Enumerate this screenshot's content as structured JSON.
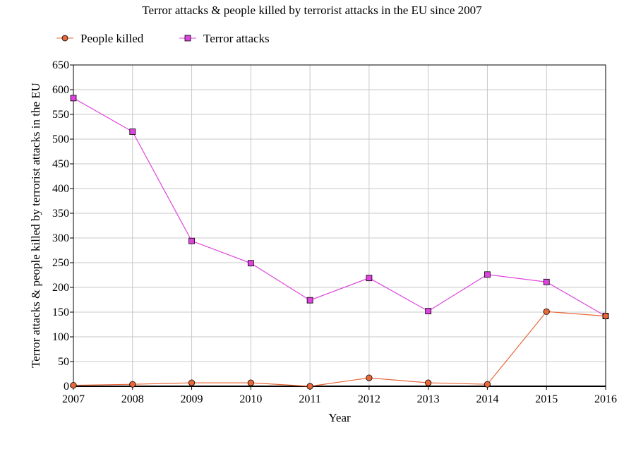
{
  "chart_data": {
    "type": "line",
    "title": "Terror attacks & people killed by terrorist attacks in the EU since 2007",
    "xlabel": "Year",
    "ylabel": "Terror attacks & people killed by terrorist attacks in the EU",
    "categories": [
      "2007",
      "2008",
      "2009",
      "2010",
      "2011",
      "2012",
      "2013",
      "2014",
      "2015",
      "2016"
    ],
    "yticks": [
      "0",
      "50",
      "100",
      "150",
      "200",
      "250",
      "300",
      "350",
      "400",
      "450",
      "500",
      "550",
      "600",
      "650"
    ],
    "ylim": [
      0,
      650
    ],
    "grid": true,
    "legend_position": "top-left",
    "series": [
      {
        "name": "People killed",
        "values": [
          2,
          4,
          7,
          7,
          0,
          17,
          7,
          4,
          151,
          142
        ],
        "color": "#e8683a",
        "marker": "circle"
      },
      {
        "name": "Terror attacks",
        "values": [
          583,
          515,
          294,
          249,
          174,
          219,
          152,
          226,
          211,
          142
        ],
        "color": "#dd44dd",
        "marker": "square"
      }
    ]
  }
}
